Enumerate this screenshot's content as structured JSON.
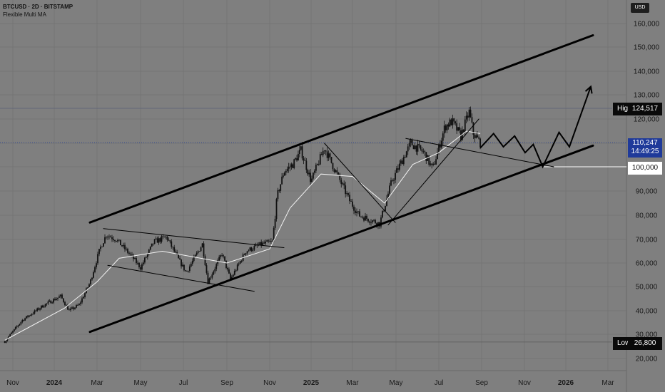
{
  "header": {
    "symbol_line": "BTCUSD · 2D · BITSTAMP",
    "indicator": "Flexible Multi MA"
  },
  "currency_badge": "USD",
  "price_tags": {
    "high_label": "High",
    "high_value": "124,517",
    "current_price": "110,247",
    "countdown": "14:49:25",
    "support_value": "100,000",
    "low_label": "Low",
    "low_value": "26,800"
  },
  "colors": {
    "background": "#7f7f7f",
    "candle": "#111111",
    "moving_average": "#f2f2f2",
    "trendline": "#000000",
    "current_price": "#1f3a9a",
    "grid": "#6f6f6f"
  },
  "chart_data": {
    "type": "candlestick",
    "symbol": "BTCUSD",
    "timeframe": "2D",
    "exchange": "BITSTAMP",
    "x_ticks": [
      "Nov",
      "2024",
      "Mar",
      "May",
      "Jul",
      "Sep",
      "Nov",
      "2025",
      "Mar",
      "May",
      "Jul",
      "Sep",
      "Nov",
      "2026",
      "Mar"
    ],
    "y_ticks": [
      20000,
      30000,
      40000,
      50000,
      60000,
      70000,
      80000,
      90000,
      100000,
      110000,
      120000,
      130000,
      140000,
      150000,
      160000
    ],
    "y_tick_labels": [
      "20,000",
      "30,000",
      "40,000",
      "50,000",
      "60,000",
      "70,000",
      "80,000",
      "90,000",
      "100,000",
      "110,000",
      "120,000",
      "130,000",
      "140,000",
      "150,000",
      "160,000"
    ],
    "y_range": [
      15000,
      166000
    ],
    "price_path": [
      [
        "2023-10-20",
        27000
      ],
      [
        "2023-11-15",
        36000
      ],
      [
        "2023-12-15",
        42000
      ],
      [
        "2024-01-10",
        46000
      ],
      [
        "2024-01-22",
        40000
      ],
      [
        "2024-02-05",
        42500
      ],
      [
        "2024-02-20",
        51500
      ],
      [
        "2024-03-05",
        66000
      ],
      [
        "2024-03-14",
        72000
      ],
      [
        "2024-03-28",
        70000
      ],
      [
        "2024-04-18",
        63000
      ],
      [
        "2024-05-01",
        58000
      ],
      [
        "2024-05-20",
        69000
      ],
      [
        "2024-06-07",
        71000
      ],
      [
        "2024-06-25",
        61000
      ],
      [
        "2024-07-05",
        56000
      ],
      [
        "2024-07-28",
        68000
      ],
      [
        "2024-08-05",
        52000
      ],
      [
        "2024-08-25",
        64000
      ],
      [
        "2024-09-06",
        53000
      ],
      [
        "2024-09-28",
        65000
      ],
      [
        "2024-10-20",
        68000
      ],
      [
        "2024-11-05",
        69000
      ],
      [
        "2024-11-12",
        88000
      ],
      [
        "2024-11-22",
        98000
      ],
      [
        "2024-12-05",
        101000
      ],
      [
        "2024-12-17",
        107000
      ],
      [
        "2025-01-01",
        94000
      ],
      [
        "2025-01-20",
        108000
      ],
      [
        "2025-02-05",
        98000
      ],
      [
        "2025-02-25",
        86000
      ],
      [
        "2025-03-10",
        80000
      ],
      [
        "2025-04-08",
        76500
      ],
      [
        "2025-04-25",
        94000
      ],
      [
        "2025-05-22",
        110000
      ],
      [
        "2025-06-10",
        106000
      ],
      [
        "2025-06-22",
        99000
      ],
      [
        "2025-07-10",
        117000
      ],
      [
        "2025-07-20",
        119000
      ],
      [
        "2025-08-02",
        113000
      ],
      [
        "2025-08-14",
        123000
      ],
      [
        "2025-08-20",
        114000
      ],
      [
        "2025-08-30",
        110247
      ]
    ],
    "moving_average": [
      [
        "2023-10-20",
        27500
      ],
      [
        "2024-01-15",
        41000
      ],
      [
        "2024-03-01",
        52000
      ],
      [
        "2024-04-01",
        62000
      ],
      [
        "2024-06-01",
        65000
      ],
      [
        "2024-09-01",
        60000
      ],
      [
        "2024-11-01",
        66000
      ],
      [
        "2024-12-01",
        83000
      ],
      [
        "2025-01-15",
        97000
      ],
      [
        "2025-03-01",
        96000
      ],
      [
        "2025-04-15",
        85000
      ],
      [
        "2025-05-25",
        101000
      ],
      [
        "2025-07-01",
        106000
      ],
      [
        "2025-08-10",
        115000
      ],
      [
        "2025-08-30",
        114000
      ]
    ],
    "trendlines": [
      {
        "name": "channel-upper",
        "from": [
          "2024-02-20",
          77000
        ],
        "to": [
          "2026-02-08",
          155000
        ],
        "width": 3
      },
      {
        "name": "channel-lower",
        "from": [
          "2024-02-20",
          31000
        ],
        "to": [
          "2026-02-08",
          109000
        ],
        "width": 3
      },
      {
        "name": "wedge-upper",
        "from": [
          "2024-03-10",
          74500
        ],
        "to": [
          "2024-11-22",
          66500
        ],
        "width": 1
      },
      {
        "name": "wedge-lower",
        "from": [
          "2024-03-16",
          59000
        ],
        "to": [
          "2024-10-10",
          48000
        ],
        "width": 1
      },
      {
        "name": "correction-down",
        "from": [
          "2025-01-20",
          110000
        ],
        "to": [
          "2025-04-30",
          77000
        ],
        "width": 1
      },
      {
        "name": "rally-up",
        "from": [
          "2025-04-20",
          76000
        ],
        "to": [
          "2025-08-28",
          120000
        ],
        "width": 1
      },
      {
        "name": "pullback-line",
        "from": [
          "2025-05-15",
          112000
        ],
        "to": [
          "2025-12-14",
          100000
        ],
        "width": 1
      }
    ],
    "projection": [
      [
        "2025-08-30",
        108000
      ],
      [
        "2025-09-18",
        114000
      ],
      [
        "2025-10-02",
        108500
      ],
      [
        "2025-10-18",
        113000
      ],
      [
        "2025-11-02",
        106000
      ],
      [
        "2025-11-14",
        109500
      ],
      [
        "2025-11-28",
        100000
      ],
      [
        "2025-12-22",
        114500
      ],
      [
        "2026-01-06",
        108500
      ],
      [
        "2026-02-05",
        133500
      ]
    ],
    "horizontal_levels": [
      {
        "name": "high",
        "value": 124517
      },
      {
        "name": "current",
        "value": 110247
      },
      {
        "name": "support",
        "value": 100000
      },
      {
        "name": "low",
        "value": 26800
      }
    ]
  }
}
